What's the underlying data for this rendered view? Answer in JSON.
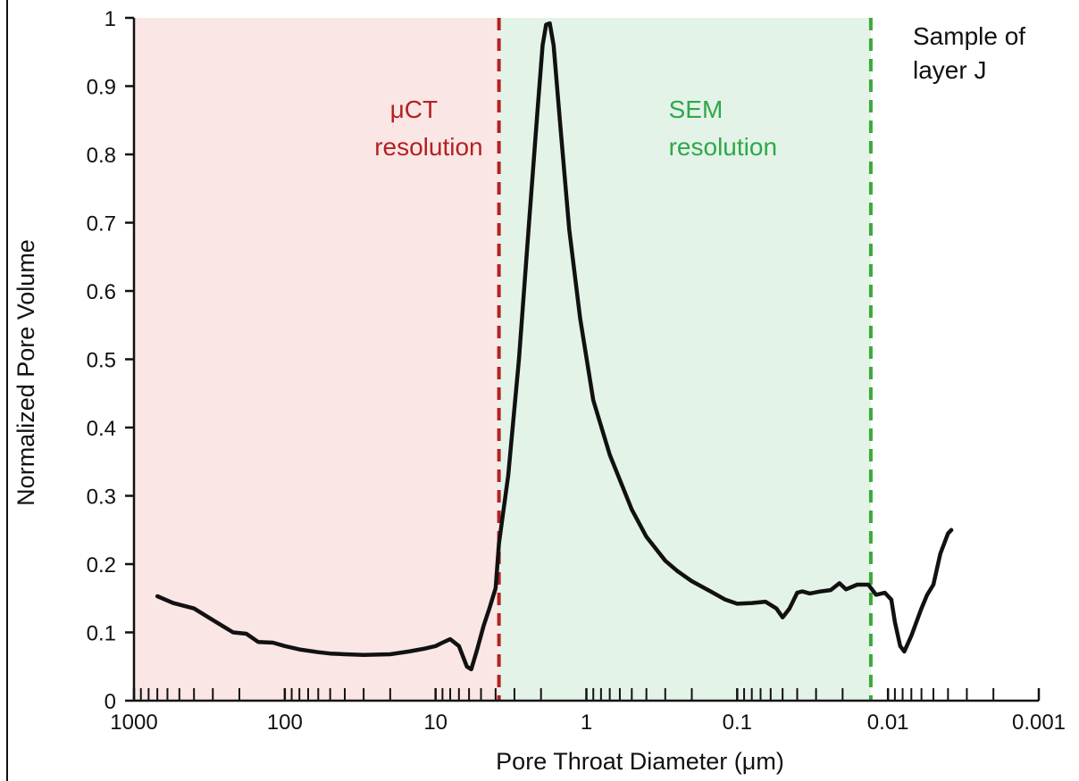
{
  "chart_data": {
    "type": "line",
    "title": "",
    "xlabel": "Pore Throat Diameter (μm)",
    "ylabel": "Normalized Pore Volume",
    "x_scale": "log",
    "x_reversed": true,
    "xlim": [
      1000,
      0.001
    ],
    "ylim": [
      0,
      1
    ],
    "x_ticks": [
      {
        "value": 1000,
        "label": "1000"
      },
      {
        "value": 100,
        "label": "100"
      },
      {
        "value": 10,
        "label": "10"
      },
      {
        "value": 1,
        "label": "1"
      },
      {
        "value": 0.1,
        "label": "0.1"
      },
      {
        "value": 0.01,
        "label": "0.01"
      },
      {
        "value": 0.001,
        "label": "0.001"
      }
    ],
    "y_ticks": [
      {
        "value": 0,
        "label": "0"
      },
      {
        "value": 0.1,
        "label": "0.1"
      },
      {
        "value": 0.2,
        "label": "0.2"
      },
      {
        "value": 0.3,
        "label": "0.3"
      },
      {
        "value": 0.4,
        "label": "0.4"
      },
      {
        "value": 0.5,
        "label": "0.5"
      },
      {
        "value": 0.6,
        "label": "0.6"
      },
      {
        "value": 0.7,
        "label": "0.7"
      },
      {
        "value": 0.8,
        "label": "0.8"
      },
      {
        "value": 0.9,
        "label": "0.9"
      },
      {
        "value": 1,
        "label": "1"
      }
    ],
    "grid": false,
    "regions": [
      {
        "label_lines": [
          "μCT",
          "resolution"
        ],
        "x_from": 1000,
        "x_to": 3.8,
        "fill_color": "#fbe6e6",
        "line_color": "#b22222",
        "text_color": "#b22222"
      },
      {
        "label_lines": [
          "SEM",
          "resolution"
        ],
        "x_from": 3.8,
        "x_to": 0.013,
        "fill_color": "#e4f3e8",
        "line_color": "#3aaa3a",
        "text_color": "#2ea84a"
      }
    ],
    "annotation_lines": [
      "Sample of",
      "layer J"
    ],
    "series": [
      {
        "color": "#111111",
        "points": [
          [
            700,
            0.153
          ],
          [
            550,
            0.143
          ],
          [
            400,
            0.135
          ],
          [
            300,
            0.118
          ],
          [
            220,
            0.1
          ],
          [
            180,
            0.098
          ],
          [
            150,
            0.086
          ],
          [
            120,
            0.085
          ],
          [
            100,
            0.08
          ],
          [
            80,
            0.075
          ],
          [
            60,
            0.071
          ],
          [
            50,
            0.069
          ],
          [
            40,
            0.068
          ],
          [
            30,
            0.067
          ],
          [
            20,
            0.068
          ],
          [
            15,
            0.072
          ],
          [
            12,
            0.076
          ],
          [
            10,
            0.08
          ],
          [
            9,
            0.085
          ],
          [
            8,
            0.09
          ],
          [
            7,
            0.08
          ],
          [
            6.2,
            0.05
          ],
          [
            5.8,
            0.046
          ],
          [
            5.3,
            0.075
          ],
          [
            4.8,
            0.11
          ],
          [
            4.4,
            0.135
          ],
          [
            4.0,
            0.165
          ],
          [
            3.8,
            0.23
          ],
          [
            3.3,
            0.33
          ],
          [
            2.8,
            0.5
          ],
          [
            2.4,
            0.7
          ],
          [
            2.1,
            0.87
          ],
          [
            1.95,
            0.96
          ],
          [
            1.85,
            0.99
          ],
          [
            1.75,
            0.992
          ],
          [
            1.65,
            0.96
          ],
          [
            1.5,
            0.85
          ],
          [
            1.3,
            0.69
          ],
          [
            1.1,
            0.56
          ],
          [
            0.9,
            0.44
          ],
          [
            0.7,
            0.36
          ],
          [
            0.5,
            0.28
          ],
          [
            0.4,
            0.24
          ],
          [
            0.3,
            0.205
          ],
          [
            0.25,
            0.19
          ],
          [
            0.2,
            0.175
          ],
          [
            0.15,
            0.16
          ],
          [
            0.12,
            0.148
          ],
          [
            0.1,
            0.142
          ],
          [
            0.08,
            0.143
          ],
          [
            0.065,
            0.145
          ],
          [
            0.055,
            0.135
          ],
          [
            0.05,
            0.122
          ],
          [
            0.045,
            0.135
          ],
          [
            0.04,
            0.158
          ],
          [
            0.037,
            0.16
          ],
          [
            0.033,
            0.157
          ],
          [
            0.028,
            0.16
          ],
          [
            0.024,
            0.162
          ],
          [
            0.021,
            0.172
          ],
          [
            0.019,
            0.163
          ],
          [
            0.016,
            0.17
          ],
          [
            0.0135,
            0.17
          ],
          [
            0.012,
            0.155
          ],
          [
            0.0105,
            0.158
          ],
          [
            0.0095,
            0.148
          ],
          [
            0.009,
            0.115
          ],
          [
            0.0083,
            0.08
          ],
          [
            0.0078,
            0.072
          ],
          [
            0.007,
            0.095
          ],
          [
            0.006,
            0.135
          ],
          [
            0.0055,
            0.155
          ],
          [
            0.005,
            0.17
          ],
          [
            0.0045,
            0.215
          ],
          [
            0.004,
            0.245
          ],
          [
            0.0038,
            0.25
          ]
        ]
      }
    ]
  }
}
